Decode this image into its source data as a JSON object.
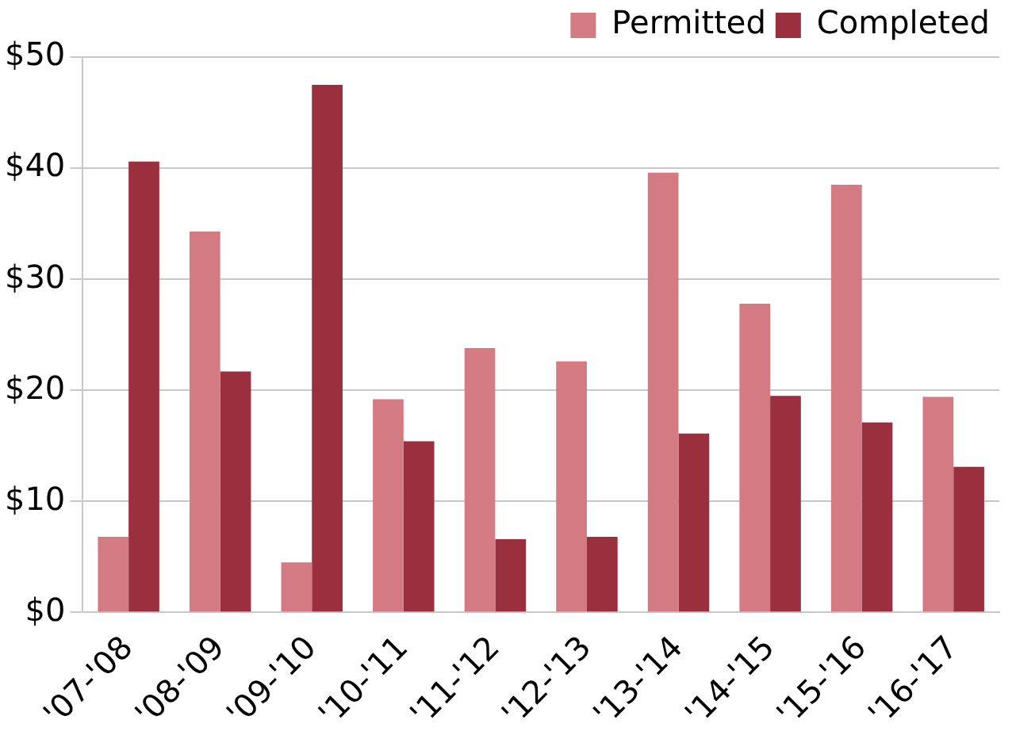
{
  "chart_data": {
    "type": "bar",
    "categories": [
      "'07-'08",
      "'08-'09",
      "'09-'10",
      "'10-'11",
      "'11-'12",
      "'12-'13",
      "'13-'14",
      "'14-'15",
      "'15-'16",
      "'16-'17"
    ],
    "series": [
      {
        "name": "Permitted",
        "color": "#d47a82",
        "values": [
          6.8,
          34.3,
          4.5,
          19.2,
          23.8,
          22.6,
          39.6,
          27.8,
          38.5,
          19.4
        ]
      },
      {
        "name": "Completed",
        "color": "#9a2f3e",
        "values": [
          40.6,
          21.7,
          47.5,
          15.4,
          6.6,
          6.8,
          16.1,
          19.5,
          17.1,
          13.1
        ]
      }
    ],
    "ylim": [
      0,
      50
    ],
    "yticks": [
      {
        "value": 0,
        "label": "$0"
      },
      {
        "value": 10,
        "label": "$10"
      },
      {
        "value": 20,
        "label": "$20"
      },
      {
        "value": 30,
        "label": "$30"
      },
      {
        "value": 40,
        "label": "$40"
      },
      {
        "value": 50,
        "label": "$50"
      }
    ],
    "grid": "y",
    "legend": "top"
  }
}
